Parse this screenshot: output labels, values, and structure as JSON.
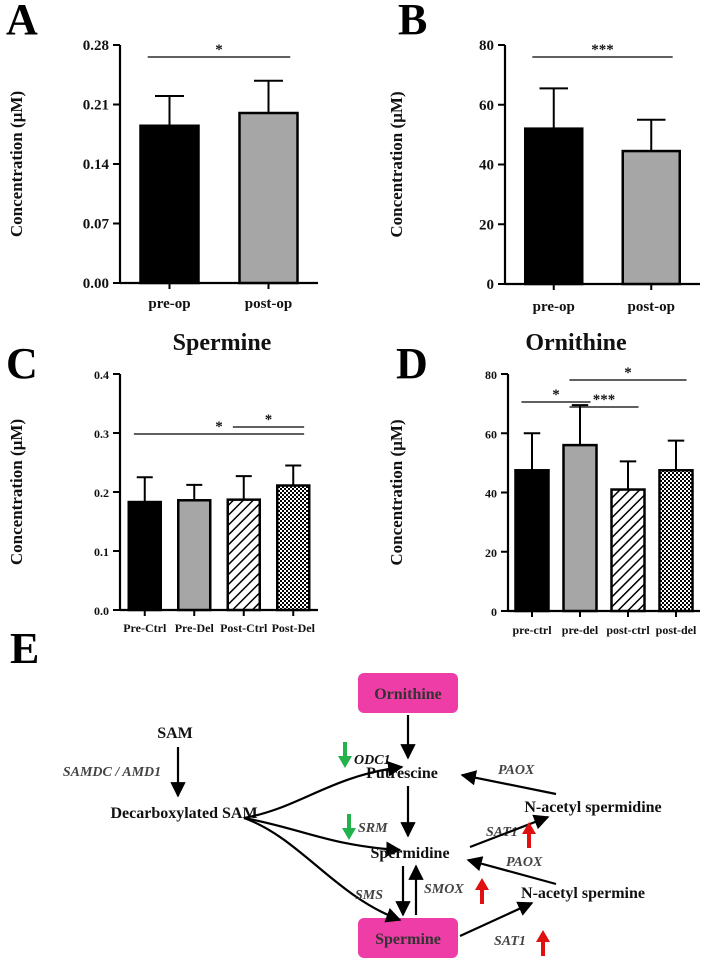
{
  "panels": {
    "a": "A",
    "b": "B",
    "c": "C",
    "d": "D",
    "e": "E"
  },
  "titles": {
    "spermine": "Spermine",
    "ornithine": "Ornithine"
  },
  "colors": {
    "black": "#000000",
    "gray": "#a6a6a6",
    "up_arrow": "#e01010",
    "down_arrow": "#22b24c",
    "box": "#ee3da6"
  },
  "chart_data": [
    {
      "id": "A",
      "type": "bar",
      "categories": [
        "pre-op",
        "post-op"
      ],
      "values": [
        0.185,
        0.2
      ],
      "errors": [
        0.035,
        0.038
      ],
      "fills": [
        "solid-black",
        "solid-gray"
      ],
      "ylabel": "Concentration (µM)",
      "ylim": [
        0,
        0.28
      ],
      "yticks": [
        "0.00",
        "0.07",
        "0.14",
        "0.21",
        "0.28"
      ],
      "significance": [
        {
          "from": 0,
          "to": 1,
          "label": "*"
        }
      ]
    },
    {
      "id": "B",
      "type": "bar",
      "categories": [
        "pre-op",
        "post-op"
      ],
      "values": [
        52,
        44.5
      ],
      "errors": [
        13.5,
        10.5
      ],
      "fills": [
        "solid-black",
        "solid-gray"
      ],
      "ylabel": "Concentration (µM)",
      "ylim": [
        0,
        80
      ],
      "yticks": [
        "0",
        "20",
        "40",
        "60",
        "80"
      ],
      "significance": [
        {
          "from": 0,
          "to": 1,
          "label": "***"
        }
      ]
    },
    {
      "id": "C",
      "type": "bar",
      "categories": [
        "Pre-Ctrl",
        "Pre-Del",
        "Post-Ctrl",
        "Post-Del"
      ],
      "values": [
        0.183,
        0.186,
        0.187,
        0.211
      ],
      "errors": [
        0.042,
        0.026,
        0.04,
        0.034
      ],
      "fills": [
        "solid-black",
        "solid-gray",
        "hatch",
        "dots"
      ],
      "ylabel": "Concentration (µM)",
      "ylim": [
        0,
        0.4
      ],
      "yticks": [
        "0.0",
        "0.1",
        "0.2",
        "0.3",
        "0.4"
      ],
      "significance": [
        {
          "from": 0,
          "to": 3,
          "label": "*"
        },
        {
          "from": 2,
          "to": 3,
          "label": "*"
        }
      ]
    },
    {
      "id": "D",
      "type": "bar",
      "categories": [
        "pre-ctrl",
        "pre-del",
        "post-ctrl",
        "post-del"
      ],
      "values": [
        47.5,
        56,
        41,
        47.5
      ],
      "errors": [
        12.5,
        13.5,
        9.5,
        10
      ],
      "fills": [
        "solid-black",
        "solid-gray",
        "hatch",
        "dots"
      ],
      "ylabel": "Concentration (µM)",
      "ylim": [
        0,
        80
      ],
      "yticks": [
        "0",
        "20",
        "40",
        "60",
        "80"
      ],
      "significance": [
        {
          "from": 0,
          "to": 1,
          "label": "*"
        },
        {
          "from": 1,
          "to": 2,
          "label": "***"
        },
        {
          "from": 1,
          "to": 3,
          "label": "*"
        }
      ]
    }
  ],
  "pathway": {
    "ornithine": "Ornithine",
    "sam": "SAM",
    "samdc": "SAMDC / AMD1",
    "dcsam": "Decarboxylated SAM",
    "odc1": "ODC1",
    "putrescine": "Putrescine",
    "paox1": "PAOX",
    "acetyl_spermidine": "N-acetyl spermidine",
    "srm": "SRM",
    "sat1_a": "SAT1",
    "spermidine": "Spermidine",
    "paox2": "PAOX",
    "sms": "SMS",
    "smox": "SMOX",
    "acetyl_spermine": "N-acetyl spermine",
    "spermine": "Spermine",
    "sat1_b": "SAT1"
  }
}
